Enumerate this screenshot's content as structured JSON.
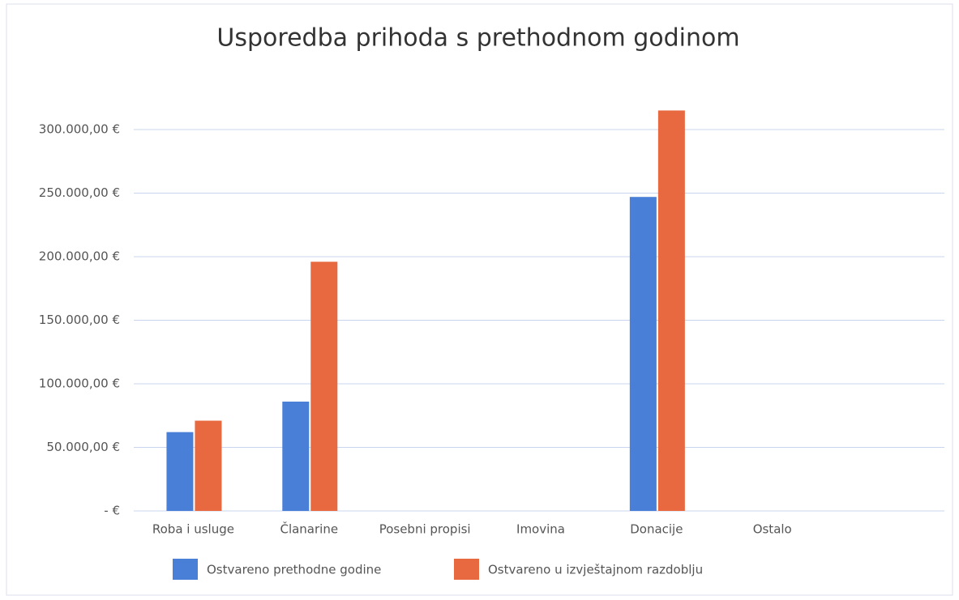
{
  "chart_data": {
    "type": "bar",
    "title": "Usporedba prihoda s prethodnom godinom",
    "categories": [
      "Roba i usluge",
      "Članarine",
      "Posebni propisi",
      "Imovina",
      "Donacije",
      "Ostalo",
      null
    ],
    "series": [
      {
        "name": "Ostvareno prethodne godine",
        "color": "#4a7fd8",
        "values": [
          62000,
          86000,
          0,
          0,
          247000,
          0,
          null
        ]
      },
      {
        "name": "Ostvareno u izvještajnom razdoblju",
        "color": "#e8683f",
        "values": [
          71000,
          196000,
          0,
          0,
          315000,
          0,
          null
        ]
      }
    ],
    "ylim": [
      0,
      350000
    ],
    "yticks": [
      {
        "value": 0,
        "label": "-   €"
      },
      {
        "value": 50000,
        "label": "50.000,00 €"
      },
      {
        "value": 100000,
        "label": "100.000,00 €"
      },
      {
        "value": 150000,
        "label": "150.000,00 €"
      },
      {
        "value": 200000,
        "label": "200.000,00 €"
      },
      {
        "value": 250000,
        "label": "250.000,00 €"
      },
      {
        "value": 300000,
        "label": "300.000,00 €"
      }
    ],
    "grid": true,
    "legend": "bottom"
  }
}
